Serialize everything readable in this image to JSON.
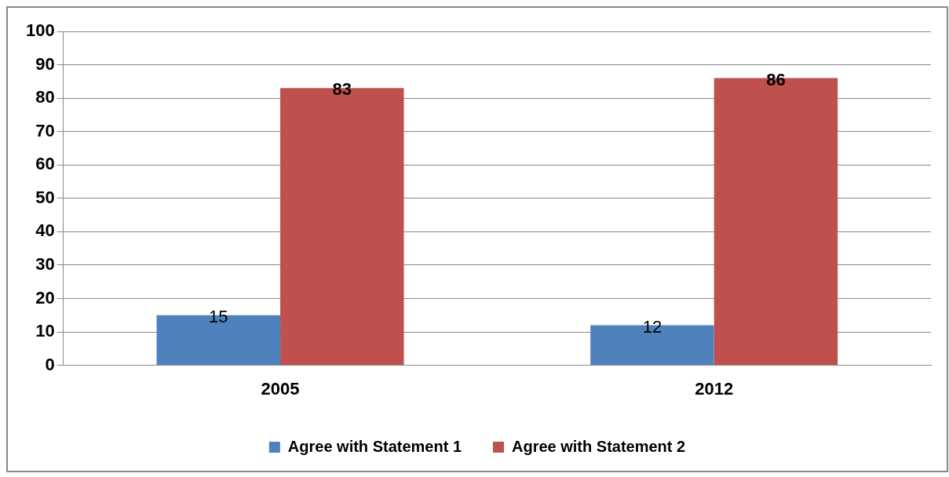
{
  "chart_data": {
    "type": "bar",
    "categories": [
      "2005",
      "2012"
    ],
    "series": [
      {
        "name": "Agree with Statement 1",
        "color": "#4f81bd",
        "values": [
          15,
          12
        ]
      },
      {
        "name": "Agree with Statement 2",
        "color": "#c0504d",
        "values": [
          83,
          86
        ]
      }
    ],
    "ylim": [
      0,
      100
    ],
    "yticks": [
      0,
      10,
      20,
      30,
      40,
      50,
      60,
      70,
      80,
      90,
      100
    ],
    "grid": "y",
    "legend": "bottom",
    "data_labels": true
  }
}
